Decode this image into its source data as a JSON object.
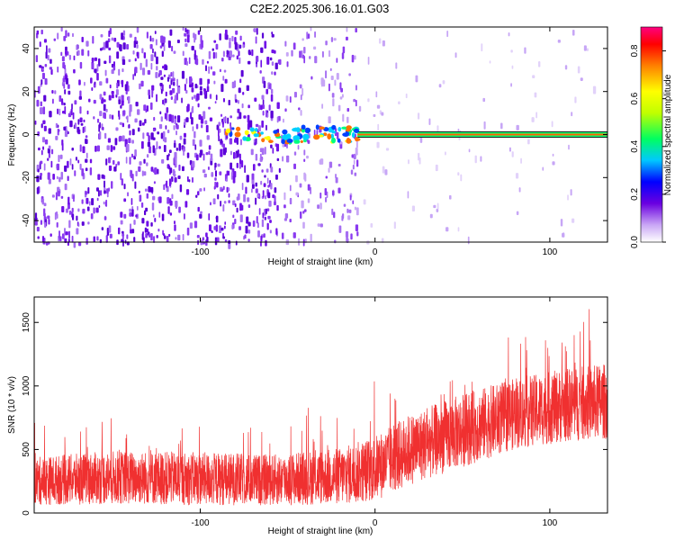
{
  "title": "C2E2.2025.306.16.01.G03",
  "chart_data": [
    {
      "type": "heatmap",
      "xlabel": "Height of straight line (km)",
      "ylabel": "Frequency (Hz)",
      "xlim": [
        -195,
        133
      ],
      "ylim": [
        -50,
        50
      ],
      "x_ticks": [
        -100,
        0,
        100
      ],
      "y_ticks": [
        -40,
        -20,
        0,
        20,
        40
      ],
      "colorbar": {
        "label": "Normalized spectral amplitude",
        "range": [
          0,
          0.9
        ],
        "ticks": [
          0,
          0.2,
          0.4,
          0.6,
          0.8
        ]
      },
      "signal_band": {
        "frequency_hz": 0,
        "start_height_km": -85,
        "continuous_from_km": -10,
        "end_height_km": 133
      }
    },
    {
      "type": "line",
      "xlabel": "Height of straight line (km)",
      "ylabel": "SNR (10 * v/v)",
      "xlim": [
        -195,
        133
      ],
      "ylim": [
        0,
        1700
      ],
      "x_ticks": [
        -100,
        0,
        100
      ],
      "y_ticks": [
        0,
        500,
        1000,
        1500
      ],
      "series": [
        {
          "color": "#f03030",
          "envelope": {
            "x": [
              -195,
              -150,
              -100,
              -60,
              -20,
              0,
              20,
              50,
              80,
              110,
              133
            ],
            "mean": [
              250,
              280,
              270,
              260,
              290,
              350,
              500,
              650,
              780,
              850,
              880
            ],
            "spread": [
              380,
              420,
              420,
              400,
              450,
              520,
              560,
              580,
              560,
              580,
              600
            ]
          }
        }
      ]
    }
  ]
}
